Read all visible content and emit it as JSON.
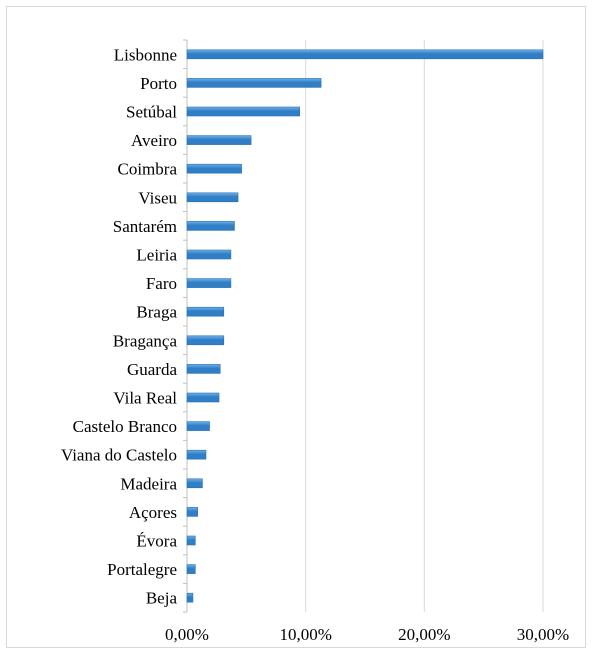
{
  "chart_data": {
    "type": "bar",
    "orientation": "horizontal",
    "categories": [
      "Lisbonne",
      "Porto",
      "Setúbal",
      "Aveiro",
      "Coimbra",
      "Viseu",
      "Santarém",
      "Leiria",
      "Faro",
      "Braga",
      "Bragança",
      "Guarda",
      "Vila Real",
      "Castelo Branco",
      "Viana do Castelo",
      "Madeira",
      "Açores",
      "Évora",
      "Portalegre",
      "Beja"
    ],
    "values": [
      30.0,
      11.3,
      9.5,
      5.4,
      4.6,
      4.3,
      4.0,
      3.7,
      3.7,
      3.1,
      3.1,
      2.8,
      2.7,
      1.9,
      1.6,
      1.3,
      0.9,
      0.7,
      0.7,
      0.5
    ],
    "xlim": [
      0,
      30
    ],
    "xticks": [
      0,
      10,
      20,
      30
    ],
    "xtick_labels": [
      "0,00%",
      "10,00%",
      "20,00%",
      "30,00%"
    ],
    "grid": "vertical",
    "legend": "none",
    "title": "",
    "xlabel": "",
    "ylabel": "",
    "colors": {
      "bar": "#2f7ec6",
      "bar_highlight": "#6fb0e8",
      "grid": "#d9d9d9",
      "axis": "#bfbfbf"
    }
  }
}
